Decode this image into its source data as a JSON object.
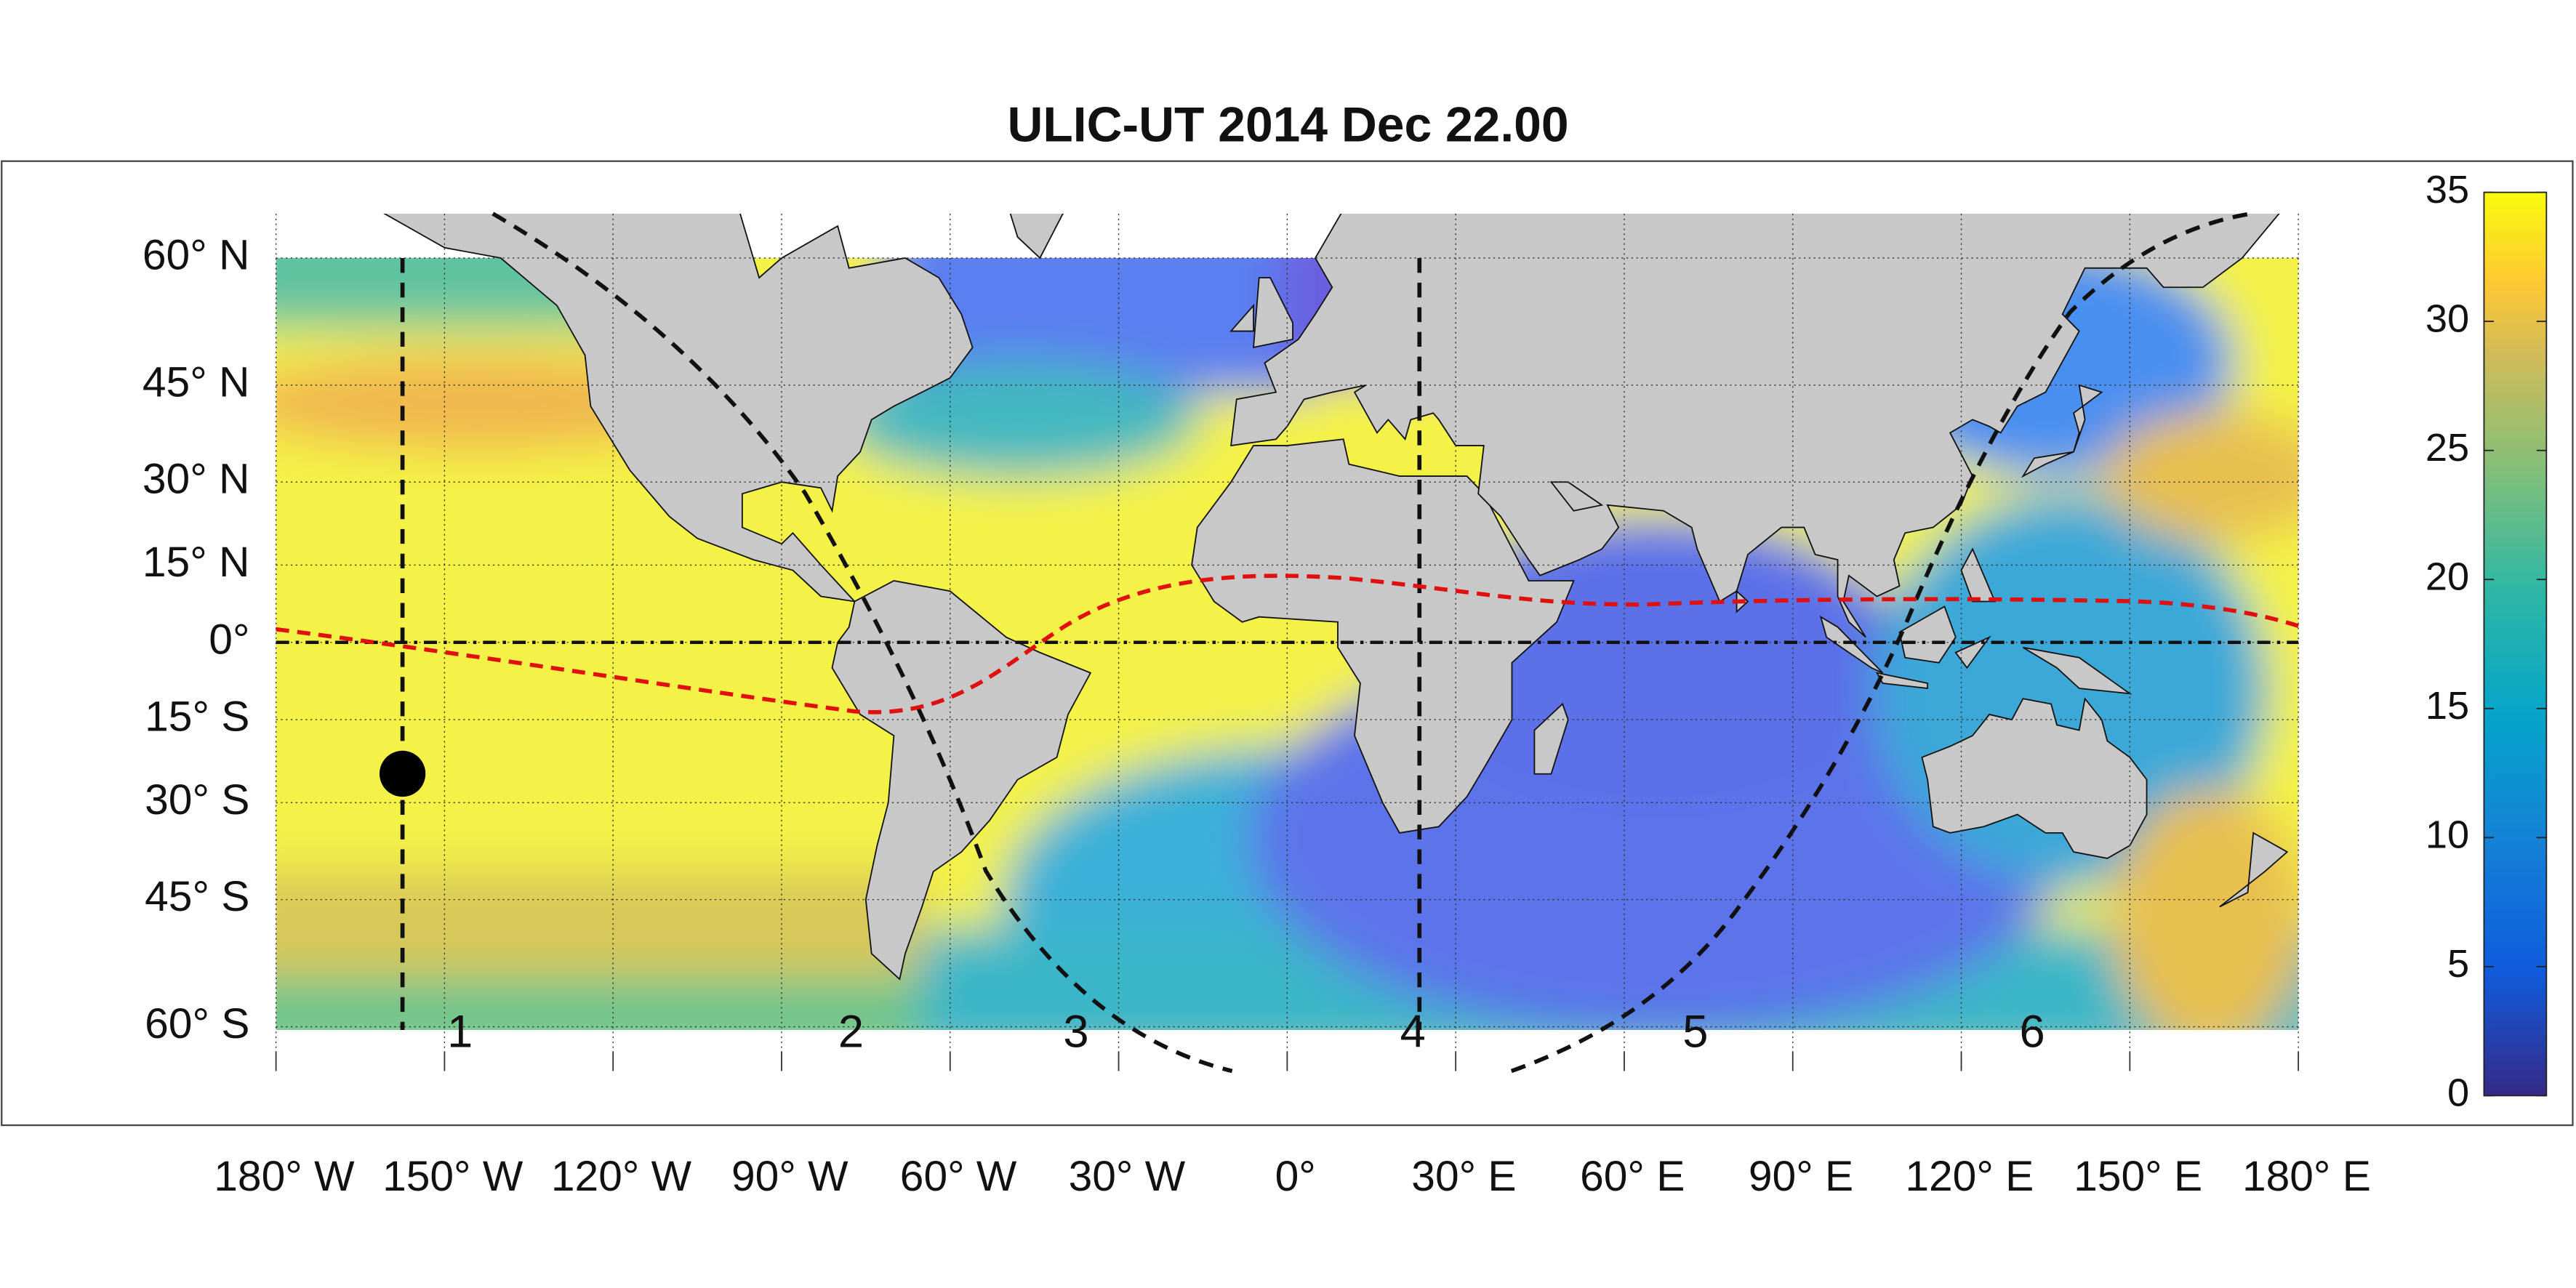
{
  "title": "ULIC-UT 2014 Dec 22.00",
  "map": {
    "lat_ticks": [
      {
        "value": 60,
        "label": "60° N"
      },
      {
        "value": 45,
        "label": "45° N"
      },
      {
        "value": 30,
        "label": "30° N"
      },
      {
        "value": 15,
        "label": "15° N"
      },
      {
        "value": 0,
        "label": "0°"
      },
      {
        "value": -15,
        "label": "15° S"
      },
      {
        "value": -30,
        "label": "30° S"
      },
      {
        "value": -45,
        "label": "45° S"
      },
      {
        "value": -60,
        "label": "60° S"
      }
    ],
    "lon_ticks": [
      {
        "value": -180,
        "label": "180° W"
      },
      {
        "value": -150,
        "label": "150° W"
      },
      {
        "value": -120,
        "label": "120° W"
      },
      {
        "value": -90,
        "label": "90° W"
      },
      {
        "value": -60,
        "label": "60° W"
      },
      {
        "value": -30,
        "label": "30° W"
      },
      {
        "value": 0,
        "label": "0°"
      },
      {
        "value": 30,
        "label": "30° E"
      },
      {
        "value": 60,
        "label": "60° E"
      },
      {
        "value": 90,
        "label": "90° E"
      },
      {
        "value": 120,
        "label": "120° E"
      },
      {
        "value": 150,
        "label": "150° E"
      },
      {
        "value": 180,
        "label": "180° E"
      }
    ],
    "track_labels": [
      "1",
      "2",
      "3",
      "4",
      "5",
      "6"
    ],
    "colorbar": {
      "lim": [
        0,
        35
      ],
      "ticks": [
        0,
        5,
        10,
        15,
        20,
        25,
        30,
        35
      ]
    }
  }
}
